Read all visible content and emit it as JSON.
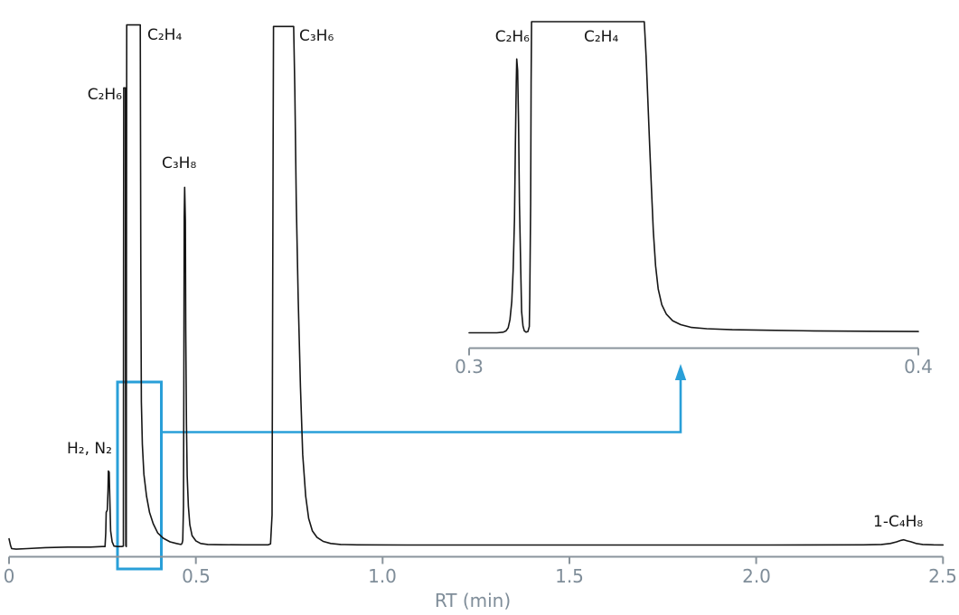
{
  "chart_data": {
    "type": "line",
    "title": "",
    "xlabel": "RT (min)",
    "ylabel": "",
    "x_axis": {
      "range": [
        0,
        2.5
      ],
      "tick_labels": [
        "0",
        "0.5",
        "1.0",
        "1.5",
        "2.0",
        "2.5"
      ]
    },
    "y_axis": {
      "visible": false,
      "unit": "detector response, fraction of full scale (peaks at 1.0 are clipped)"
    },
    "peaks": [
      {
        "name": "H2-N2",
        "label": "H₂, N₂",
        "rt_min": 0.27,
        "height_frac": 0.14,
        "clipped": false
      },
      {
        "name": "C2H6",
        "label": "C₂H₆",
        "rt_min": 0.31,
        "height_frac": 0.88,
        "clipped": true
      },
      {
        "name": "C2H4",
        "label": "C₂H₄",
        "rt_min": 0.32,
        "height_frac": 1.0,
        "clipped": true
      },
      {
        "name": "C3H8",
        "label": "C₃H₈",
        "rt_min": 0.47,
        "height_frac": 0.69,
        "clipped": false
      },
      {
        "name": "C3H6",
        "label": "C₃H₆",
        "rt_min": 0.73,
        "height_frac": 1.0,
        "clipped": true
      },
      {
        "name": "1-C4H8",
        "label": "1-C₄H₈",
        "rt_min": 2.39,
        "height_frac": 0.01,
        "clipped": false
      }
    ],
    "main_trace": [
      [
        0,
        0.012
      ],
      [
        0.004,
        -0.001
      ],
      [
        0.007,
        -0.007
      ],
      [
        0.019,
        -0.008
      ],
      [
        0.048,
        -0.007
      ],
      [
        0.097,
        -0.005
      ],
      [
        0.157,
        -0.004
      ],
      [
        0.218,
        -0.004
      ],
      [
        0.249,
        -0.003
      ],
      [
        0.257,
        -0.003
      ],
      [
        0.259,
        0.023
      ],
      [
        0.26,
        0.063
      ],
      [
        0.263,
        0.067
      ],
      [
        0.265,
        0.105
      ],
      [
        0.266,
        0.142
      ],
      [
        0.268,
        0.14
      ],
      [
        0.27,
        0.082
      ],
      [
        0.272,
        0.027
      ],
      [
        0.276,
        0.006
      ],
      [
        0.281,
        -0.002
      ],
      [
        0.29,
        -0.003
      ],
      [
        0.302,
        -0.003
      ],
      [
        0.306,
        -0.002
      ],
      [
        0.3065,
        0.526
      ],
      [
        0.307,
        0.878
      ],
      [
        0.3114,
        0.878
      ],
      [
        0.312,
        0.353
      ],
      [
        0.3126,
        -0.001
      ],
      [
        0.3138,
        -0.003
      ],
      [
        0.3143,
        0.526
      ],
      [
        0.315,
        0.999
      ],
      [
        0.3513,
        0.999
      ],
      [
        0.3527,
        0.526
      ],
      [
        0.3542,
        0.275
      ],
      [
        0.357,
        0.193
      ],
      [
        0.361,
        0.136
      ],
      [
        0.368,
        0.094
      ],
      [
        0.376,
        0.063
      ],
      [
        0.386,
        0.041
      ],
      [
        0.398,
        0.023
      ],
      [
        0.413,
        0.013
      ],
      [
        0.431,
        0.006
      ],
      [
        0.448,
        0.003
      ],
      [
        0.46,
        0.001
      ],
      [
        0.463,
        0.003
      ],
      [
        0.465,
        0.009
      ],
      [
        0.467,
        0.075
      ],
      [
        0.468,
        0.301
      ],
      [
        0.469,
        0.63
      ],
      [
        0.47,
        0.687
      ],
      [
        0.472,
        0.622
      ],
      [
        0.473,
        0.414
      ],
      [
        0.475,
        0.232
      ],
      [
        0.477,
        0.133
      ],
      [
        0.48,
        0.075
      ],
      [
        0.484,
        0.039
      ],
      [
        0.49,
        0.018
      ],
      [
        0.5,
        0.008
      ],
      [
        0.513,
        0.003
      ],
      [
        0.532,
        0.001
      ],
      [
        0.569,
        0.0005
      ],
      [
        0.629,
        0.0003
      ],
      [
        0.694,
        0.0003
      ],
      [
        0.7,
        0.002
      ],
      [
        0.704,
        0.058
      ],
      [
        0.705,
        0.318
      ],
      [
        0.707,
        0.787
      ],
      [
        0.708,
        0.996
      ],
      [
        0.762,
        0.996
      ],
      [
        0.765,
        0.873
      ],
      [
        0.769,
        0.657
      ],
      [
        0.774,
        0.474
      ],
      [
        0.78,
        0.304
      ],
      [
        0.786,
        0.174
      ],
      [
        0.794,
        0.094
      ],
      [
        0.802,
        0.051
      ],
      [
        0.812,
        0.027
      ],
      [
        0.824,
        0.015
      ],
      [
        0.841,
        0.007
      ],
      [
        0.861,
        0.003
      ],
      [
        0.888,
        0.001
      ],
      [
        0.932,
        0.0003
      ],
      [
        1.065,
        0
      ],
      [
        1.306,
        0
      ],
      [
        1.67,
        0
      ],
      [
        2.032,
        0
      ],
      [
        2.287,
        0.0003
      ],
      [
        2.335,
        0.001
      ],
      [
        2.359,
        0.003
      ],
      [
        2.376,
        0.006
      ],
      [
        2.388,
        0.009
      ],
      [
        2.395,
        0.01
      ],
      [
        2.404,
        0.008
      ],
      [
        2.415,
        0.006
      ],
      [
        2.428,
        0.003
      ],
      [
        2.446,
        0.001
      ],
      [
        2.475,
        0.0003
      ],
      [
        2.5,
        0.0002
      ]
    ],
    "inset": {
      "x_axis": {
        "range": [
          0.3,
          0.4
        ],
        "tick_labels": [
          "0.3",
          "0.4"
        ]
      },
      "peaks": [
        {
          "name": "C2H6",
          "label": "C₂H₆",
          "rt_min": 0.311,
          "height_frac": 0.88,
          "clipped": false
        },
        {
          "name": "C2H4",
          "label": "C₂H₄",
          "rt_min": 0.314,
          "height_frac": 1.0,
          "clipped": true
        }
      ],
      "trace": [
        [
          0.3,
          0
        ],
        [
          0.3062,
          0
        ],
        [
          0.3076,
          0.002
        ],
        [
          0.3082,
          0.006
        ],
        [
          0.3087,
          0.016
        ],
        [
          0.3091,
          0.042
        ],
        [
          0.3095,
          0.1
        ],
        [
          0.3098,
          0.199
        ],
        [
          0.3101,
          0.364
        ],
        [
          0.3103,
          0.605
        ],
        [
          0.3105,
          0.808
        ],
        [
          0.3106,
          0.88
        ],
        [
          0.3108,
          0.843
        ],
        [
          0.311,
          0.678
        ],
        [
          0.3112,
          0.417
        ],
        [
          0.3115,
          0.193
        ],
        [
          0.3117,
          0.068
        ],
        [
          0.312,
          0.022
        ],
        [
          0.3123,
          0.006
        ],
        [
          0.3127,
          0.002
        ],
        [
          0.3131,
          0.004
        ],
        [
          0.3134,
          0.02
        ],
        [
          0.3135,
          0.112
        ],
        [
          0.3137,
          0.417
        ],
        [
          0.3138,
          0.808
        ],
        [
          0.3139,
          1.0
        ],
        [
          0.339,
          1.0
        ],
        [
          0.3394,
          0.89
        ],
        [
          0.3398,
          0.745
        ],
        [
          0.3402,
          0.599
        ],
        [
          0.3406,
          0.46
        ],
        [
          0.341,
          0.327
        ],
        [
          0.3415,
          0.216
        ],
        [
          0.3421,
          0.141
        ],
        [
          0.3429,
          0.09
        ],
        [
          0.3439,
          0.06
        ],
        [
          0.3453,
          0.039
        ],
        [
          0.3471,
          0.026
        ],
        [
          0.3495,
          0.017
        ],
        [
          0.3529,
          0.013
        ],
        [
          0.3586,
          0.01
        ],
        [
          0.3666,
          0.008
        ],
        [
          0.3767,
          0.006
        ],
        [
          0.3887,
          0.005
        ],
        [
          0.4,
          0.004
        ]
      ]
    },
    "zoom_annotation": {
      "rt_from": 0.3,
      "rt_to": 0.4,
      "description": "blue box around 0.3–0.4 min region with arrow pointing to inset"
    },
    "colors": {
      "trace": "#161616",
      "axis": "#8a949c",
      "tick_text": "#7f8d99",
      "highlight_blue": "#299fd8"
    },
    "legend": {
      "visible": false
    },
    "grid": false
  }
}
